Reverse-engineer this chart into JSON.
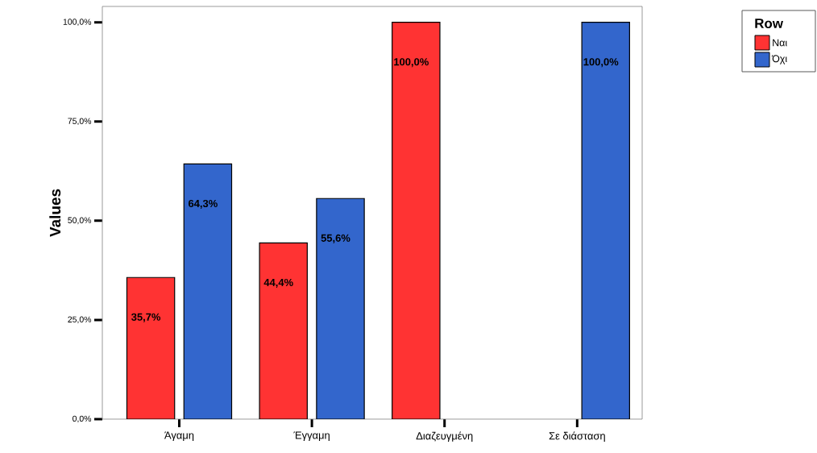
{
  "chart_data": {
    "type": "bar",
    "ylabel": "Values",
    "legend_title": "Row",
    "legend": "top right",
    "grid": false,
    "categories": [
      "Άγαμη",
      "Έγγαμη",
      "Διαζευγμένη",
      "Σε διάσταση"
    ],
    "series": [
      {
        "name": "Ναι",
        "color": "#ff3333",
        "values": [
          35.7,
          44.4,
          100.0,
          null
        ],
        "value_labels": [
          "35,7%",
          "44,4%",
          "100,0%",
          null
        ]
      },
      {
        "name": "Όχι",
        "color": "#3366cc",
        "values": [
          64.3,
          55.6,
          null,
          100.0
        ],
        "value_labels": [
          "64,3%",
          "55,6%",
          null,
          "100,0%"
        ]
      }
    ],
    "ylim": [
      0,
      104
    ],
    "yticks": [
      {
        "value": 0,
        "label": "0,0%"
      },
      {
        "value": 25,
        "label": "25,0%"
      },
      {
        "value": 50,
        "label": "50,0%"
      },
      {
        "value": 75,
        "label": "75,0%"
      },
      {
        "value": 100,
        "label": "100,0%"
      }
    ]
  }
}
